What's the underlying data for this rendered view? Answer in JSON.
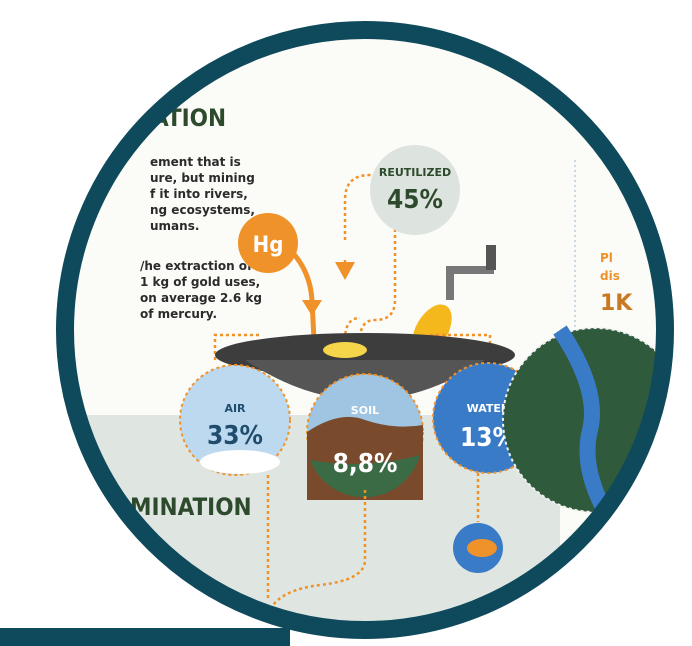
{
  "header": {
    "title": "ATION"
  },
  "intro": {
    "lines": [
      "ement that is",
      "ure, but mining",
      "f it into rivers,",
      "ng ecosystems,",
      "umans."
    ]
  },
  "fact": {
    "lines": [
      "/he extraction of",
      "1 kg of gold uses,",
      "on average 2.6 kg",
      "of mercury."
    ]
  },
  "mercury": {
    "symbol": "Hg"
  },
  "reutilized": {
    "label": "REUTILIZED",
    "value": "45%"
  },
  "air": {
    "label": "AIR",
    "value": "33%"
  },
  "soil": {
    "label": "SOIL",
    "value": "8,8%"
  },
  "water": {
    "label": "WATER",
    "value": "13%"
  },
  "section2": {
    "title": "MINATION"
  },
  "side": {
    "lines": [
      "Pl",
      "dis",
      "1K"
    ]
  }
}
